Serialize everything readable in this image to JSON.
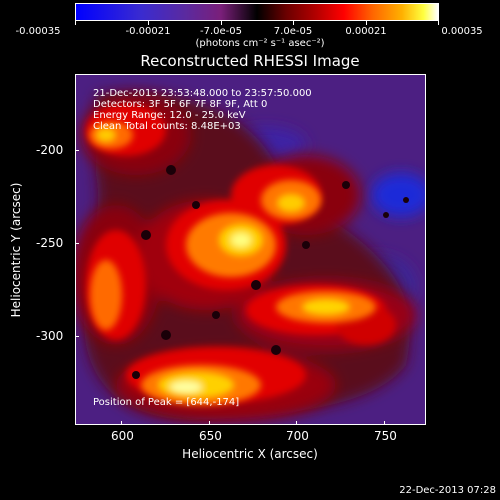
{
  "colorbar": {
    "tick_labels": [
      "-0.00035",
      "-0.00021",
      "-7.0e-05",
      "7.0e-05",
      "0.00021",
      "0.00035"
    ],
    "units": "(photons cm⁻² s⁻¹ asec⁻²)"
  },
  "plot": {
    "title": "Reconstructed RHESSI Image",
    "info_lines": [
      "21-Dec-2013 23:53:48.000 to 23:57:50.000",
      "Detectors: 3F 5F 6F 7F 8F 9F, Att 0",
      "Energy Range: 12.0 - 25.0 keV",
      "Clean     Total counts: 8.48E+03"
    ],
    "position_text": "Position of Peak = [644,-174]",
    "x_axis": {
      "title": "Heliocentric X (arcsec)",
      "tick_labels": [
        "600",
        "650",
        "700",
        "750"
      ]
    },
    "y_axis": {
      "title": "Heliocentric Y (arcsec)",
      "tick_labels": [
        "-200",
        "-250",
        "-300"
      ]
    }
  },
  "footer": {
    "date": "22-Dec-2013 07:28"
  }
}
